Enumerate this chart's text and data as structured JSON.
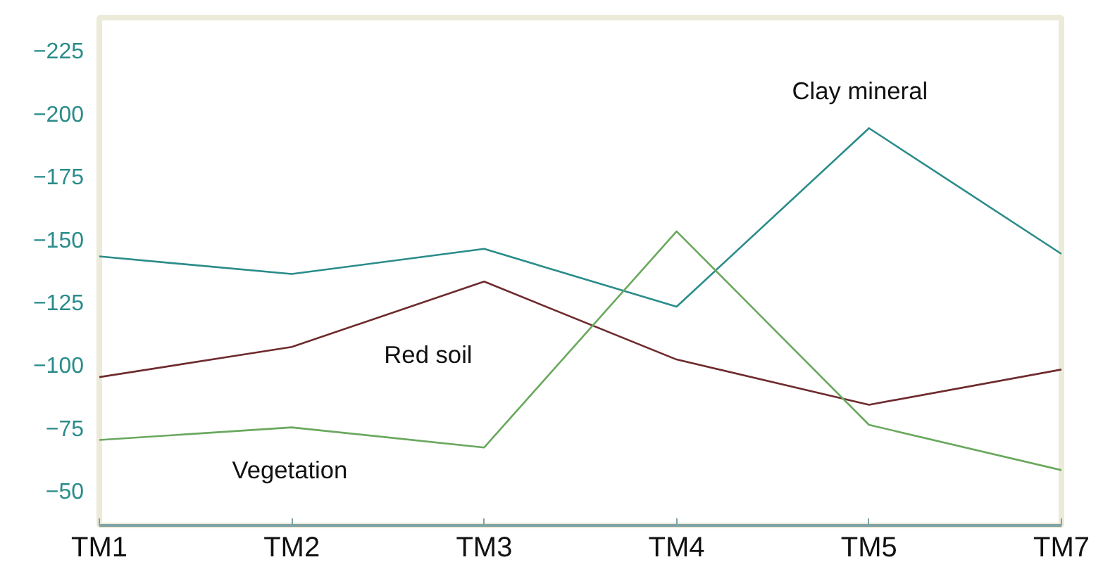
{
  "chart_data": {
    "type": "line",
    "categories": [
      "TM1",
      "TM2",
      "TM3",
      "TM4",
      "TM5",
      "TM7"
    ],
    "ylim": [
      -36,
      -238
    ],
    "yticks": [
      {
        "value": -50,
        "label": "−50"
      },
      {
        "value": -75,
        "label": "−75"
      },
      {
        "value": -100,
        "label": "−100"
      },
      {
        "value": -125,
        "label": "−125"
      },
      {
        "value": -150,
        "label": "−150"
      },
      {
        "value": -175,
        "label": "−175"
      },
      {
        "value": -200,
        "label": "−200"
      },
      {
        "value": -225,
        "label": "−225"
      }
    ],
    "series": [
      {
        "name": "Clay mineral",
        "color": "#2a8c8a",
        "values": [
          -143,
          -136,
          -146,
          -123,
          -194,
          -144
        ]
      },
      {
        "name": "Red soil",
        "color": "#6e2b2e",
        "values": [
          -95,
          -107,
          -133,
          -102,
          -84,
          -98
        ]
      },
      {
        "name": "Vegetation",
        "color": "#6aa85e",
        "values": [
          -70,
          -75,
          -67,
          -153,
          -76,
          -58
        ]
      }
    ],
    "marker": "none",
    "line_style": "solid"
  }
}
